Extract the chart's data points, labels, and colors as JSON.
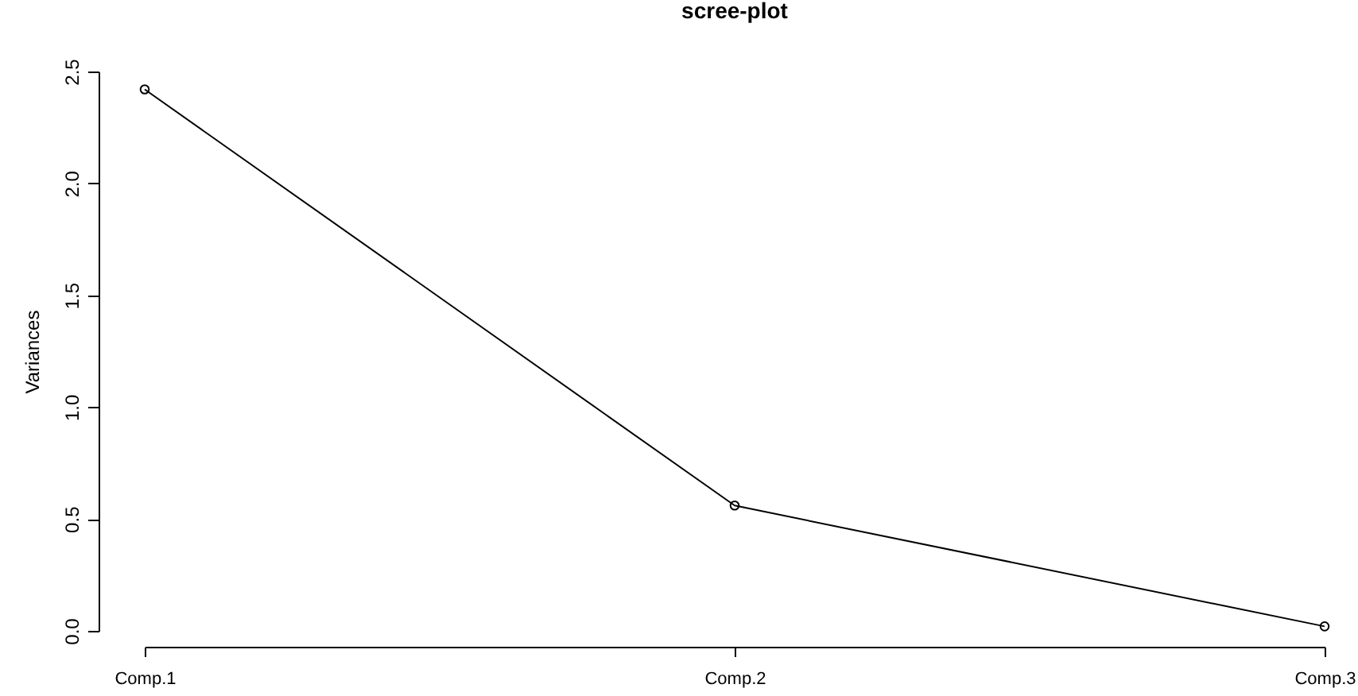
{
  "chart_data": {
    "type": "line",
    "title": "scree-plot",
    "ylabel": "Variances",
    "categories": [
      "Comp.1",
      "Comp.2",
      "Comp.3"
    ],
    "values": [
      2.42,
      0.56,
      0.02
    ],
    "color": "#000000",
    "ylim": [
      0,
      2.5
    ],
    "yticks": [
      {
        "value": 0,
        "label": "0.0"
      },
      0.5,
      {
        "value": 1,
        "label": "1.0"
      },
      1.5,
      {
        "value": 2,
        "label": "2.0"
      },
      2.5
    ],
    "marker": "circle"
  }
}
